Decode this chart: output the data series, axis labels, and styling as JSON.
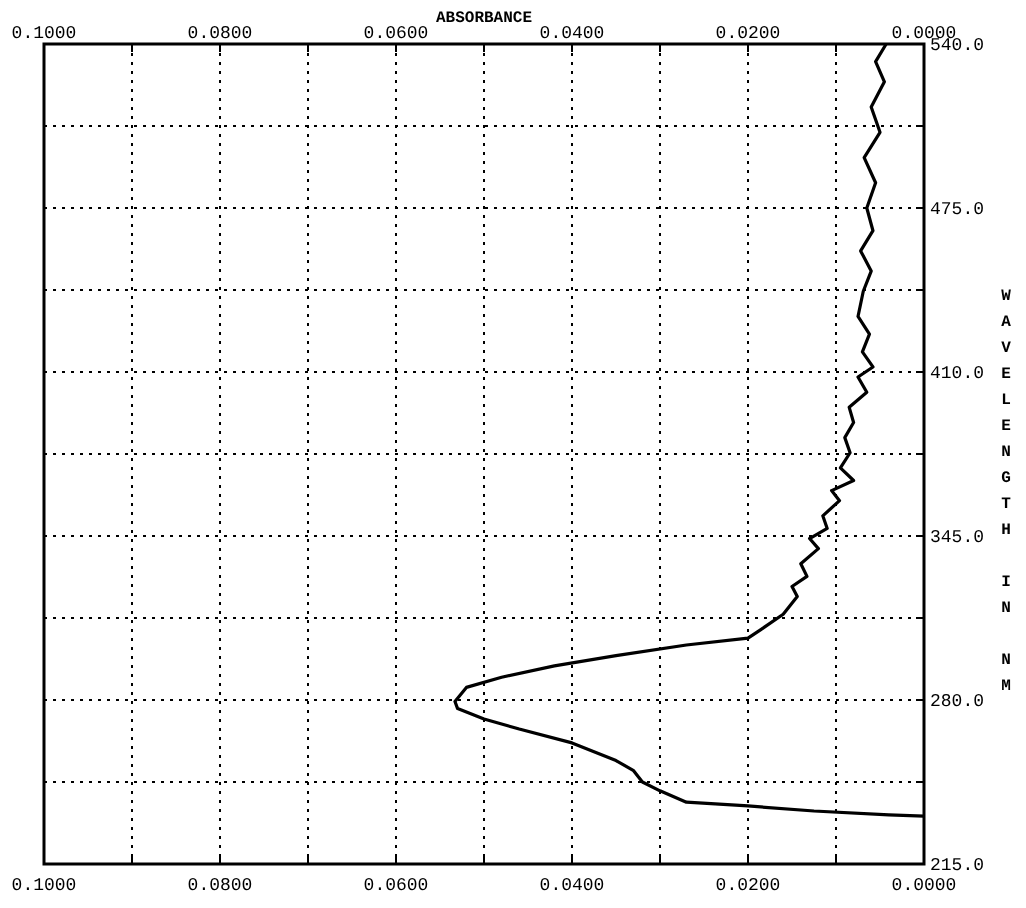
{
  "chart_data": {
    "type": "line",
    "x2label": "ABSORBANCE",
    "ylabel": "WAVELENGTH IN NM",
    "xlim": [
      0.1,
      0
    ],
    "x2lim": [
      0.1,
      0
    ],
    "xticks": [
      {
        "value": 0.1,
        "label": "0.1000"
      },
      {
        "value": 0.09,
        "label": null
      },
      {
        "value": 0.08,
        "label": "0.0800"
      },
      {
        "value": 0.07,
        "label": null
      },
      {
        "value": 0.06,
        "label": "0.0600"
      },
      {
        "value": 0.05,
        "label": null
      },
      {
        "value": 0.04,
        "label": "0.0400"
      },
      {
        "value": 0.03,
        "label": null
      },
      {
        "value": 0.02,
        "label": "0.0200"
      },
      {
        "value": 0.01,
        "label": null
      },
      {
        "value": 0,
        "label": "0.0000"
      }
    ],
    "x2ticks": [
      {
        "value": 0.1,
        "label": "0.1000"
      },
      {
        "value": 0.09,
        "label": null
      },
      {
        "value": 0.08,
        "label": "0.0800"
      },
      {
        "value": 0.07,
        "label": null
      },
      {
        "value": 0.06,
        "label": "0.0600"
      },
      {
        "value": 0.05,
        "label": null
      },
      {
        "value": 0.04,
        "label": "0.0400"
      },
      {
        "value": 0.03,
        "label": null
      },
      {
        "value": 0.02,
        "label": "0.0200"
      },
      {
        "value": 0.01,
        "label": null
      },
      {
        "value": 0,
        "label": "0.0000"
      }
    ],
    "ylim": [
      215,
      540
    ],
    "yticks": [
      {
        "value": 215,
        "label": "215.0"
      },
      {
        "value": 247.5,
        "label": null
      },
      {
        "value": 280,
        "label": "280.0"
      },
      {
        "value": 312.5,
        "label": null
      },
      {
        "value": 345,
        "label": "345.0"
      },
      {
        "value": 377.5,
        "label": null
      },
      {
        "value": 410,
        "label": "410.0"
      },
      {
        "value": 442.5,
        "label": null
      },
      {
        "value": 475,
        "label": "475.0"
      },
      {
        "value": 507.5,
        "label": null
      },
      {
        "value": 540,
        "label": "540.0"
      }
    ],
    "grid": true,
    "line_style": "solid",
    "marker": "none",
    "series": [
      {
        "color": "#000000",
        "x": [
          0,
          0.004,
          0.0125,
          0.02,
          0.027,
          0.03,
          0.032,
          0.033,
          0.035,
          0.04,
          0.046,
          0.05,
          0.053,
          0.0533,
          0.052,
          0.048,
          0.042,
          0.035,
          0.027,
          0.02,
          0.0185,
          0.016,
          0.0144,
          0.015,
          0.0133,
          0.014,
          0.012,
          0.013,
          0.011,
          0.0115,
          0.0096,
          0.0105,
          0.008,
          0.0095,
          0.0084,
          0.009,
          0.008,
          0.0085,
          0.0065,
          0.0075,
          0.0058,
          0.007,
          0.0062,
          0.0075,
          0.0069,
          0.006,
          0.0072,
          0.0058,
          0.0065,
          0.0055,
          0.0068,
          0.005,
          0.006,
          0.0045,
          0.0055,
          0.0043
        ],
        "values": [
          234,
          234.5,
          236,
          238,
          239.5,
          244,
          247.5,
          252,
          256,
          263,
          268.5,
          272.5,
          276.6,
          279.4,
          285,
          289,
          293.5,
          297.6,
          301.8,
          304.5,
          308,
          314,
          321,
          325,
          329,
          334,
          340,
          344,
          348,
          353,
          359,
          363,
          367,
          372,
          378,
          384,
          390,
          396,
          402,
          408,
          412,
          418,
          425,
          432,
          442,
          450,
          458,
          466,
          475,
          485,
          495,
          505,
          515,
          525,
          533,
          540
        ]
      }
    ]
  }
}
